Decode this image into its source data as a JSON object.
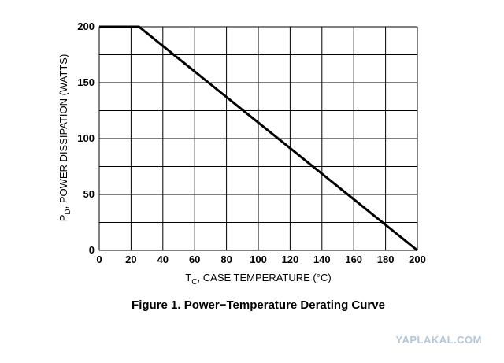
{
  "chart_data": {
    "type": "line",
    "caption": "Figure 1. Power−Temperature Derating Curve",
    "xlabel": {
      "prefix": "T",
      "subscript": "C",
      "text": ", CASE TEMPERATURE (°C)"
    },
    "ylabel": {
      "prefix": "P",
      "subscript": "D",
      "text": ", POWER DISSIPATION (WATTS)"
    },
    "xlim": [
      0,
      200
    ],
    "ylim": [
      0,
      200
    ],
    "x_ticks": [
      0,
      20,
      40,
      60,
      80,
      100,
      120,
      140,
      160,
      180,
      200
    ],
    "y_ticks": [
      0,
      50,
      100,
      150,
      200
    ],
    "x_grid": [
      0,
      20,
      40,
      60,
      80,
      100,
      120,
      140,
      160,
      180,
      200
    ],
    "y_grid": [
      0,
      25,
      50,
      75,
      100,
      125,
      150,
      175,
      200
    ],
    "grid": true,
    "series": [
      {
        "x": [
          0,
          25,
          200
        ],
        "y": [
          200,
          200,
          0
        ]
      }
    ],
    "colors": {
      "line": "#000000",
      "grid": "#000000",
      "watermark": "#b4c7d7"
    }
  },
  "watermark": "YAPLAKAL.COM"
}
